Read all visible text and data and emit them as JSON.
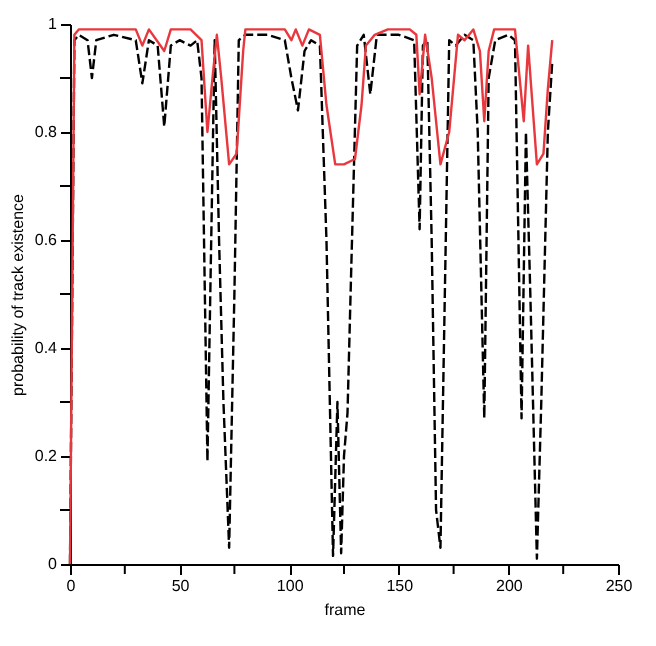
{
  "chart_data": {
    "type": "line",
    "xlabel": "frame",
    "ylabel": "probability of track existence",
    "xlim": [
      0,
      250
    ],
    "ylim": [
      0,
      1
    ],
    "xticks": [
      0,
      {
        "value": 25,
        "label": null
      },
      50,
      {
        "value": 75,
        "label": null
      },
      100,
      {
        "value": 125,
        "label": null
      },
      150,
      {
        "value": 175,
        "label": null
      },
      200,
      {
        "value": 225,
        "label": null
      },
      250
    ],
    "yticks": [
      0,
      {
        "value": 0.1,
        "label": null
      },
      0.2,
      {
        "value": 0.3,
        "label": null
      },
      0.4,
      {
        "value": 0.5,
        "label": null
      },
      0.6,
      {
        "value": 0.7,
        "label": null
      },
      0.8,
      {
        "value": 0.9,
        "label": null
      },
      1
    ],
    "grid": false,
    "legend": false,
    "marker": "none",
    "series": [
      {
        "color": "#000000",
        "line_style": "dashed",
        "x": [
          0,
          2,
          4,
          8,
          10,
          12,
          20,
          30,
          33,
          36,
          40,
          43,
          46,
          50,
          55,
          58,
          60,
          62.7,
          64,
          66,
          68,
          70,
          72.6,
          75,
          77,
          80,
          90,
          98,
          101,
          104,
          107,
          110,
          114,
          117,
          120,
          122,
          123.7,
          125,
          126.6,
          128,
          131,
          134,
          137,
          140,
          150,
          157,
          159.5,
          161,
          163,
          165,
          167,
          169,
          171,
          173,
          176,
          180,
          184,
          186,
          189,
          191,
          194,
          200,
          203,
          206,
          208,
          210,
          213,
          215,
          218,
          220
        ],
        "values": [
          0,
          0.97,
          0.98,
          0.97,
          0.9,
          0.97,
          0.98,
          0.97,
          0.89,
          0.97,
          0.96,
          0.81,
          0.96,
          0.97,
          0.96,
          0.97,
          0.9,
          0.19,
          0.5,
          0.97,
          0.6,
          0.3,
          0.03,
          0.5,
          0.97,
          0.98,
          0.98,
          0.97,
          0.9,
          0.84,
          0.95,
          0.97,
          0.96,
          0.6,
          0.015,
          0.3,
          0.02,
          0.2,
          0.28,
          0.5,
          0.96,
          0.98,
          0.87,
          0.98,
          0.98,
          0.97,
          0.62,
          0.96,
          0.97,
          0.6,
          0.1,
          0.03,
          0.5,
          0.97,
          0.96,
          0.98,
          0.97,
          0.8,
          0.27,
          0.9,
          0.97,
          0.98,
          0.97,
          0.27,
          0.8,
          0.5,
          0.01,
          0.3,
          0.8,
          0.93
        ]
      },
      {
        "color": "#e8383d",
        "line_style": "solid",
        "x": [
          0,
          2,
          4,
          10,
          20,
          30,
          33,
          36,
          43,
          46,
          55,
          60,
          62.7,
          65,
          67,
          69,
          72.6,
          76,
          79,
          80,
          90,
          98,
          101,
          103,
          106,
          109,
          114,
          117,
          121,
          125,
          130,
          133,
          135,
          137,
          139,
          145,
          155,
          158,
          159.5,
          162,
          165,
          169,
          173,
          177,
          180,
          184,
          187,
          189,
          191,
          193.5,
          200,
          203,
          207,
          209,
          211,
          213,
          216,
          218,
          220
        ],
        "values": [
          0,
          0.98,
          0.99,
          0.99,
          0.99,
          0.99,
          0.96,
          0.99,
          0.95,
          0.99,
          0.99,
          0.97,
          0.8,
          0.9,
          0.98,
          0.9,
          0.74,
          0.76,
          0.95,
          0.99,
          0.99,
          0.99,
          0.97,
          0.99,
          0.96,
          0.99,
          0.98,
          0.85,
          0.74,
          0.74,
          0.75,
          0.85,
          0.96,
          0.97,
          0.98,
          0.99,
          0.99,
          0.98,
          0.87,
          0.98,
          0.9,
          0.74,
          0.8,
          0.98,
          0.97,
          0.99,
          0.95,
          0.82,
          0.95,
          0.99,
          0.99,
          0.99,
          0.82,
          0.96,
          0.85,
          0.74,
          0.76,
          0.88,
          0.97
        ]
      }
    ]
  }
}
